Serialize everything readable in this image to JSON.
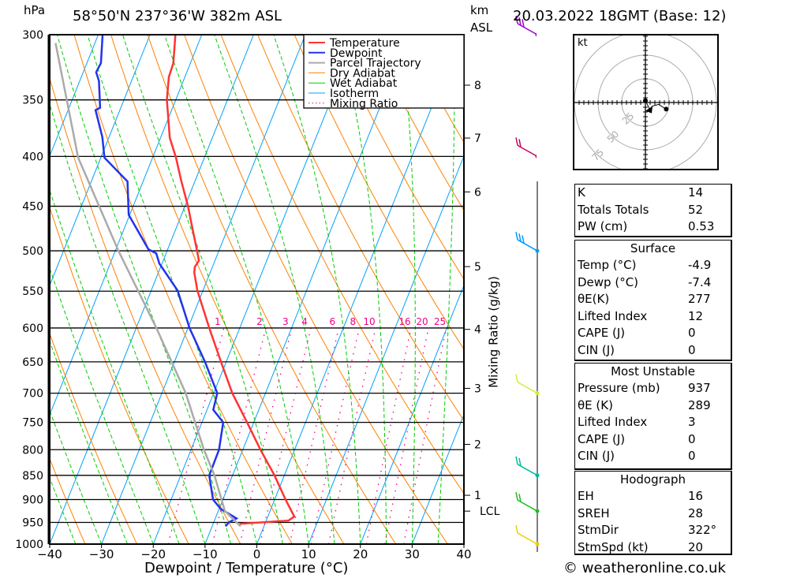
{
  "header": {
    "pressure_unit": "hPa",
    "location": "58°50'N  237°36'W  382m  ASL",
    "km_label": "km",
    "asl_label": "ASL",
    "datetime": "20.03.2022  18GMT  (Base: 12)"
  },
  "footer": {
    "copyright": "© weatheronline.co.uk"
  },
  "chart_data": {
    "type": "skew-t",
    "xlabel": "Dewpoint / Temperature (°C)",
    "ylabel_left": "hPa",
    "ylabel_right": "Mixing Ratio (g/kg)",
    "xlim": [
      -40,
      40
    ],
    "ylim_hpa": [
      1000,
      300
    ],
    "x_ticks": [
      -40,
      -30,
      -20,
      -10,
      0,
      10,
      20,
      30,
      40
    ],
    "pressure_ticks": [
      300,
      350,
      400,
      450,
      500,
      550,
      600,
      650,
      700,
      750,
      800,
      850,
      900,
      950,
      1000
    ],
    "km_ticks": [
      {
        "label": "8",
        "p": 338
      },
      {
        "label": "7",
        "p": 383
      },
      {
        "label": "6",
        "p": 435
      },
      {
        "label": "5",
        "p": 519
      },
      {
        "label": "4",
        "p": 602
      },
      {
        "label": "3",
        "p": 692
      },
      {
        "label": "2",
        "p": 790
      },
      {
        "label": "1",
        "p": 891
      },
      {
        "label": "LCL",
        "p": 925
      }
    ],
    "mixing_ratios": [
      "1",
      "2",
      "3",
      "4",
      "6",
      "8",
      "10",
      "16",
      "20",
      "25"
    ],
    "legend": [
      {
        "label": "Temperature",
        "color": "#ff3333"
      },
      {
        "label": "Dewpoint",
        "color": "#2233ee"
      },
      {
        "label": "Parcel Trajectory",
        "color": "#aaaaaa"
      },
      {
        "label": "Dry Adiabat",
        "color": "#ff8000"
      },
      {
        "label": "Wet Adiabat",
        "color": "#00cc00"
      },
      {
        "label": "Isotherm",
        "color": "#00a0ff"
      },
      {
        "label": "Mixing Ratio",
        "color": "#ee0088"
      }
    ],
    "series": [
      {
        "name": "Temperature",
        "color": "#ff3333",
        "points": [
          [
            300,
            -55.1
          ],
          [
            320.8,
            -53.3
          ],
          [
            331.5,
            -53.1
          ],
          [
            350,
            -51.7
          ],
          [
            382.9,
            -48.2
          ],
          [
            401,
            -45.5
          ],
          [
            424.4,
            -42.6
          ],
          [
            450,
            -39.4
          ],
          [
            474.6,
            -36.8
          ],
          [
            500,
            -34.2
          ],
          [
            511.7,
            -33.1
          ],
          [
            519.4,
            -33.4
          ],
          [
            526,
            -33.1
          ],
          [
            549,
            -31.1
          ],
          [
            600,
            -25.9
          ],
          [
            650,
            -21.0
          ],
          [
            700,
            -16.4
          ],
          [
            750,
            -11.3
          ],
          [
            800,
            -6.6
          ],
          [
            850,
            -1.9
          ],
          [
            900,
            2.1
          ],
          [
            936.9,
            5.1
          ],
          [
            945.9,
            4.3
          ],
          [
            953,
            -4.9
          ]
        ]
      },
      {
        "name": "Dewpoint",
        "color": "#2233ee",
        "points": [
          [
            300.6,
            -69.1
          ],
          [
            320.8,
            -67.3
          ],
          [
            327.8,
            -67.5
          ],
          [
            334.6,
            -66.3
          ],
          [
            356.5,
            -64.0
          ],
          [
            358.5,
            -64.7
          ],
          [
            382.1,
            -61.3
          ],
          [
            401.2,
            -59.3
          ],
          [
            424.4,
            -53.0
          ],
          [
            459.2,
            -50.2
          ],
          [
            498.3,
            -43.7
          ],
          [
            503,
            -41.9
          ],
          [
            515.3,
            -40.5
          ],
          [
            549.2,
            -34.9
          ],
          [
            600,
            -29.7
          ],
          [
            650,
            -24.1
          ],
          [
            700,
            -19.3
          ],
          [
            728,
            -18.8
          ],
          [
            750,
            -15.9
          ],
          [
            800,
            -14.6
          ],
          [
            850,
            -14.5
          ],
          [
            900,
            -11.9
          ],
          [
            920,
            -9.7
          ],
          [
            941,
            -5.9
          ],
          [
            950,
            -7.1
          ],
          [
            959,
            -7.4
          ]
        ]
      },
      {
        "name": "Parcel Trajectory",
        "color": "#aaaaaa",
        "points": [
          [
            306,
            -77.6
          ],
          [
            401,
            -64.4
          ],
          [
            500,
            -49.4
          ],
          [
            600,
            -36.1
          ],
          [
            700,
            -25.4
          ],
          [
            800,
            -17.5
          ],
          [
            850,
            -13.5
          ],
          [
            925,
            -8.7
          ],
          [
            959,
            -4.5
          ]
        ]
      }
    ],
    "wind_barbs": [
      {
        "p": 300,
        "color": "#9900cc"
      },
      {
        "p": 400,
        "color": "#cc0066"
      },
      {
        "p": 500,
        "color": "#0099ff"
      },
      {
        "p": 700,
        "color": "#ccee33"
      },
      {
        "p": 850,
        "color": "#00bb99"
      },
      {
        "p": 925,
        "color": "#22bb22"
      },
      {
        "p": 1000,
        "color": "#eecc00"
      }
    ],
    "hodograph": {
      "unit": "kt",
      "ring_labels": [
        "25",
        "50",
        "75"
      ],
      "trace_kt": [
        [
          0,
          2
        ],
        [
          5,
          -8
        ],
        [
          7,
          -4
        ],
        [
          10,
          -3
        ],
        [
          14,
          -2
        ],
        [
          22,
          -7
        ]
      ]
    }
  },
  "indices": {
    "rows": [
      {
        "k": "K",
        "v": "14"
      },
      {
        "k": "Totals Totals",
        "v": "52"
      },
      {
        "k": "PW (cm)",
        "v": "0.53"
      }
    ]
  },
  "surface": {
    "title": "Surface",
    "rows": [
      {
        "k": "Temp (°C)",
        "v": "-4.9"
      },
      {
        "k": "Dewp (°C)",
        "v": "-7.4"
      },
      {
        "k": "θE(K)",
        "v": "277"
      },
      {
        "k": "Lifted Index",
        "v": "12"
      },
      {
        "k": "CAPE (J)",
        "v": "0"
      },
      {
        "k": "CIN (J)",
        "v": "0"
      }
    ]
  },
  "most_unstable": {
    "title": "Most Unstable",
    "rows": [
      {
        "k": "Pressure (mb)",
        "v": "937"
      },
      {
        "k": "θE (K)",
        "v": "289"
      },
      {
        "k": "Lifted Index",
        "v": "3"
      },
      {
        "k": "CAPE (J)",
        "v": "0"
      },
      {
        "k": "CIN (J)",
        "v": "0"
      }
    ]
  },
  "hodograph_stats": {
    "title": "Hodograph",
    "rows": [
      {
        "k": "EH",
        "v": "16"
      },
      {
        "k": "SREH",
        "v": "28"
      },
      {
        "k": "StmDir",
        "v": "322°"
      },
      {
        "k": "StmSpd (kt)",
        "v": "20"
      }
    ]
  }
}
